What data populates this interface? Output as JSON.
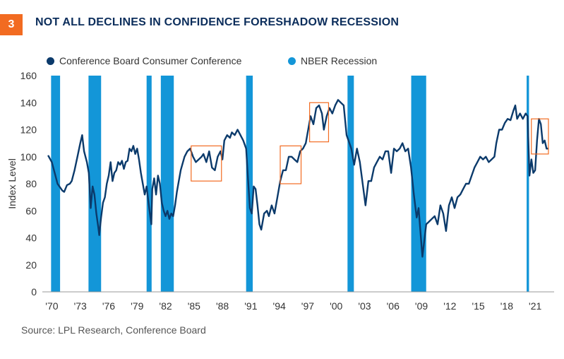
{
  "header": {
    "number": "3",
    "title": "NOT ALL DECLINES IN CONFIDENCE FORESHADOW RECESSION"
  },
  "legend": [
    {
      "label": "Conference Board Consumer Conference",
      "color": "#0b3a6b"
    },
    {
      "label": "NBER Recession",
      "color": "#1396d8"
    }
  ],
  "source": "Source: LPL Research, Conference Board",
  "chart_data": {
    "type": "line",
    "ylabel": "Index Level",
    "ylim": [
      0,
      160
    ],
    "yticks": [
      0,
      20,
      40,
      60,
      80,
      100,
      120,
      140,
      160
    ],
    "xlim": [
      1969,
      2023
    ],
    "xticks": [
      {
        "year": 1970,
        "label": "'70"
      },
      {
        "year": 1973,
        "label": "'73"
      },
      {
        "year": 1976,
        "label": "'76"
      },
      {
        "year": 1979,
        "label": "'79"
      },
      {
        "year": 1982,
        "label": "'82"
      },
      {
        "year": 1985,
        "label": "'85"
      },
      {
        "year": 1988,
        "label": "'88"
      },
      {
        "year": 1991,
        "label": "'91"
      },
      {
        "year": 1994,
        "label": "'94"
      },
      {
        "year": 1997,
        "label": "'97"
      },
      {
        "year": 2000,
        "label": "'00"
      },
      {
        "year": 2003,
        "label": "'03"
      },
      {
        "year": 2006,
        "label": "'06"
      },
      {
        "year": 2009,
        "label": "'09"
      },
      {
        "year": 2012,
        "label": "'12"
      },
      {
        "year": 2015,
        "label": "'15"
      },
      {
        "year": 2018,
        "label": "'18"
      },
      {
        "year": 2021,
        "label": "'21"
      }
    ],
    "recessions": [
      [
        1969.92,
        1970.87
      ],
      [
        1973.87,
        1975.2
      ],
      [
        1980.0,
        1980.53
      ],
      [
        1981.5,
        1982.87
      ],
      [
        1990.5,
        1991.2
      ],
      [
        2001.2,
        2001.87
      ],
      [
        2007.92,
        2009.5
      ],
      [
        2020.1,
        2020.35
      ]
    ],
    "highlight_boxes": [
      {
        "x": [
          1984.7,
          1987.9
        ],
        "y": [
          82,
          108
        ]
      },
      {
        "x": [
          1994.1,
          1996.3
        ],
        "y": [
          80,
          108
        ]
      },
      {
        "x": [
          1997.2,
          1999.2
        ],
        "y": [
          111,
          140
        ]
      },
      {
        "x": [
          2020.6,
          2022.4
        ],
        "y": [
          102,
          128
        ]
      }
    ],
    "series": [
      {
        "name": "Conference Board Consumer Conference",
        "points": [
          [
            1969.6,
            101
          ],
          [
            1970.0,
            96
          ],
          [
            1970.3,
            88
          ],
          [
            1970.6,
            80
          ],
          [
            1970.9,
            77
          ],
          [
            1971.1,
            75
          ],
          [
            1971.3,
            74
          ],
          [
            1971.6,
            79
          ],
          [
            1971.9,
            80
          ],
          [
            1972.1,
            82
          ],
          [
            1972.4,
            90
          ],
          [
            1972.7,
            100
          ],
          [
            1973.0,
            110
          ],
          [
            1973.2,
            116
          ],
          [
            1973.4,
            104
          ],
          [
            1973.7,
            96
          ],
          [
            1973.9,
            88
          ],
          [
            1974.1,
            62
          ],
          [
            1974.3,
            78
          ],
          [
            1974.5,
            72
          ],
          [
            1974.7,
            58
          ],
          [
            1974.9,
            48
          ],
          [
            1975.0,
            42
          ],
          [
            1975.2,
            55
          ],
          [
            1975.4,
            66
          ],
          [
            1975.6,
            70
          ],
          [
            1975.8,
            80
          ],
          [
            1976.0,
            86
          ],
          [
            1976.2,
            96
          ],
          [
            1976.4,
            82
          ],
          [
            1976.6,
            88
          ],
          [
            1976.8,
            90
          ],
          [
            1977.0,
            96
          ],
          [
            1977.2,
            94
          ],
          [
            1977.4,
            97
          ],
          [
            1977.6,
            91
          ],
          [
            1977.8,
            96
          ],
          [
            1978.0,
            97
          ],
          [
            1978.2,
            106
          ],
          [
            1978.4,
            104
          ],
          [
            1978.6,
            108
          ],
          [
            1978.8,
            102
          ],
          [
            1979.0,
            106
          ],
          [
            1979.2,
            98
          ],
          [
            1979.4,
            88
          ],
          [
            1979.6,
            80
          ],
          [
            1979.8,
            72
          ],
          [
            1980.0,
            78
          ],
          [
            1980.2,
            66
          ],
          [
            1980.4,
            55
          ],
          [
            1980.5,
            50
          ],
          [
            1980.6,
            76
          ],
          [
            1980.8,
            84
          ],
          [
            1981.0,
            72
          ],
          [
            1981.2,
            86
          ],
          [
            1981.4,
            80
          ],
          [
            1981.6,
            66
          ],
          [
            1981.8,
            60
          ],
          [
            1982.0,
            56
          ],
          [
            1982.2,
            60
          ],
          [
            1982.4,
            54
          ],
          [
            1982.6,
            58
          ],
          [
            1982.8,
            56
          ],
          [
            1983.0,
            64
          ],
          [
            1983.2,
            74
          ],
          [
            1983.4,
            82
          ],
          [
            1983.6,
            90
          ],
          [
            1983.8,
            95
          ],
          [
            1984.0,
            100
          ],
          [
            1984.3,
            104
          ],
          [
            1984.6,
            106
          ],
          [
            1984.9,
            100
          ],
          [
            1985.2,
            96
          ],
          [
            1985.5,
            98
          ],
          [
            1985.8,
            100
          ],
          [
            1986.0,
            102
          ],
          [
            1986.3,
            96
          ],
          [
            1986.6,
            104
          ],
          [
            1986.9,
            92
          ],
          [
            1987.2,
            90
          ],
          [
            1987.5,
            100
          ],
          [
            1987.8,
            104
          ],
          [
            1988.0,
            98
          ],
          [
            1988.2,
            112
          ],
          [
            1988.5,
            116
          ],
          [
            1988.8,
            114
          ],
          [
            1989.0,
            118
          ],
          [
            1989.3,
            116
          ],
          [
            1989.6,
            120
          ],
          [
            1989.9,
            116
          ],
          [
            1990.2,
            112
          ],
          [
            1990.5,
            106
          ],
          [
            1990.7,
            84
          ],
          [
            1990.9,
            62
          ],
          [
            1991.1,
            58
          ],
          [
            1991.3,
            78
          ],
          [
            1991.5,
            76
          ],
          [
            1991.7,
            64
          ],
          [
            1991.9,
            50
          ],
          [
            1992.1,
            46
          ],
          [
            1992.4,
            58
          ],
          [
            1992.7,
            60
          ],
          [
            1992.9,
            56
          ],
          [
            1993.2,
            64
          ],
          [
            1993.5,
            58
          ],
          [
            1993.8,
            70
          ],
          [
            1994.1,
            82
          ],
          [
            1994.4,
            90
          ],
          [
            1994.7,
            90
          ],
          [
            1995.0,
            100
          ],
          [
            1995.3,
            100
          ],
          [
            1995.6,
            98
          ],
          [
            1995.9,
            96
          ],
          [
            1996.2,
            104
          ],
          [
            1996.5,
            106
          ],
          [
            1996.8,
            110
          ],
          [
            1997.0,
            118
          ],
          [
            1997.3,
            130
          ],
          [
            1997.6,
            124
          ],
          [
            1997.9,
            136
          ],
          [
            1998.2,
            138
          ],
          [
            1998.5,
            132
          ],
          [
            1998.7,
            120
          ],
          [
            1999.0,
            130
          ],
          [
            1999.3,
            136
          ],
          [
            1999.6,
            132
          ],
          [
            1999.9,
            138
          ],
          [
            2000.2,
            142
          ],
          [
            2000.5,
            140
          ],
          [
            2000.8,
            138
          ],
          [
            2001.1,
            116
          ],
          [
            2001.3,
            112
          ],
          [
            2001.6,
            106
          ],
          [
            2001.9,
            94
          ],
          [
            2002.2,
            106
          ],
          [
            2002.5,
            96
          ],
          [
            2002.8,
            80
          ],
          [
            2003.1,
            64
          ],
          [
            2003.4,
            82
          ],
          [
            2003.7,
            82
          ],
          [
            2004.0,
            92
          ],
          [
            2004.3,
            96
          ],
          [
            2004.6,
            100
          ],
          [
            2004.9,
            98
          ],
          [
            2005.2,
            104
          ],
          [
            2005.5,
            104
          ],
          [
            2005.8,
            88
          ],
          [
            2006.1,
            106
          ],
          [
            2006.4,
            104
          ],
          [
            2006.7,
            106
          ],
          [
            2007.0,
            110
          ],
          [
            2007.3,
            104
          ],
          [
            2007.6,
            106
          ],
          [
            2007.9,
            92
          ],
          [
            2008.2,
            72
          ],
          [
            2008.5,
            55
          ],
          [
            2008.7,
            62
          ],
          [
            2008.9,
            44
          ],
          [
            2009.1,
            26
          ],
          [
            2009.3,
            38
          ],
          [
            2009.5,
            50
          ],
          [
            2009.8,
            52
          ],
          [
            2010.1,
            54
          ],
          [
            2010.4,
            56
          ],
          [
            2010.7,
            50
          ],
          [
            2011.0,
            64
          ],
          [
            2011.3,
            58
          ],
          [
            2011.6,
            45
          ],
          [
            2011.9,
            64
          ],
          [
            2012.2,
            70
          ],
          [
            2012.5,
            62
          ],
          [
            2012.8,
            70
          ],
          [
            2013.1,
            72
          ],
          [
            2013.4,
            76
          ],
          [
            2013.7,
            80
          ],
          [
            2014.0,
            80
          ],
          [
            2014.3,
            86
          ],
          [
            2014.6,
            92
          ],
          [
            2014.9,
            96
          ],
          [
            2015.2,
            100
          ],
          [
            2015.5,
            98
          ],
          [
            2015.8,
            100
          ],
          [
            2016.1,
            96
          ],
          [
            2016.4,
            98
          ],
          [
            2016.7,
            100
          ],
          [
            2016.9,
            110
          ],
          [
            2017.2,
            120
          ],
          [
            2017.5,
            120
          ],
          [
            2017.8,
            125
          ],
          [
            2018.1,
            128
          ],
          [
            2018.4,
            127
          ],
          [
            2018.7,
            134
          ],
          [
            2018.9,
            138
          ],
          [
            2019.1,
            128
          ],
          [
            2019.4,
            132
          ],
          [
            2019.7,
            128
          ],
          [
            2020.0,
            132
          ],
          [
            2020.2,
            130
          ],
          [
            2020.4,
            86
          ],
          [
            2020.6,
            98
          ],
          [
            2020.8,
            88
          ],
          [
            2021.0,
            90
          ],
          [
            2021.2,
            112
          ],
          [
            2021.4,
            128
          ],
          [
            2021.6,
            124
          ],
          [
            2021.8,
            110
          ],
          [
            2022.0,
            112
          ],
          [
            2022.2,
            106
          ],
          [
            2022.4,
            106
          ]
        ]
      }
    ]
  }
}
